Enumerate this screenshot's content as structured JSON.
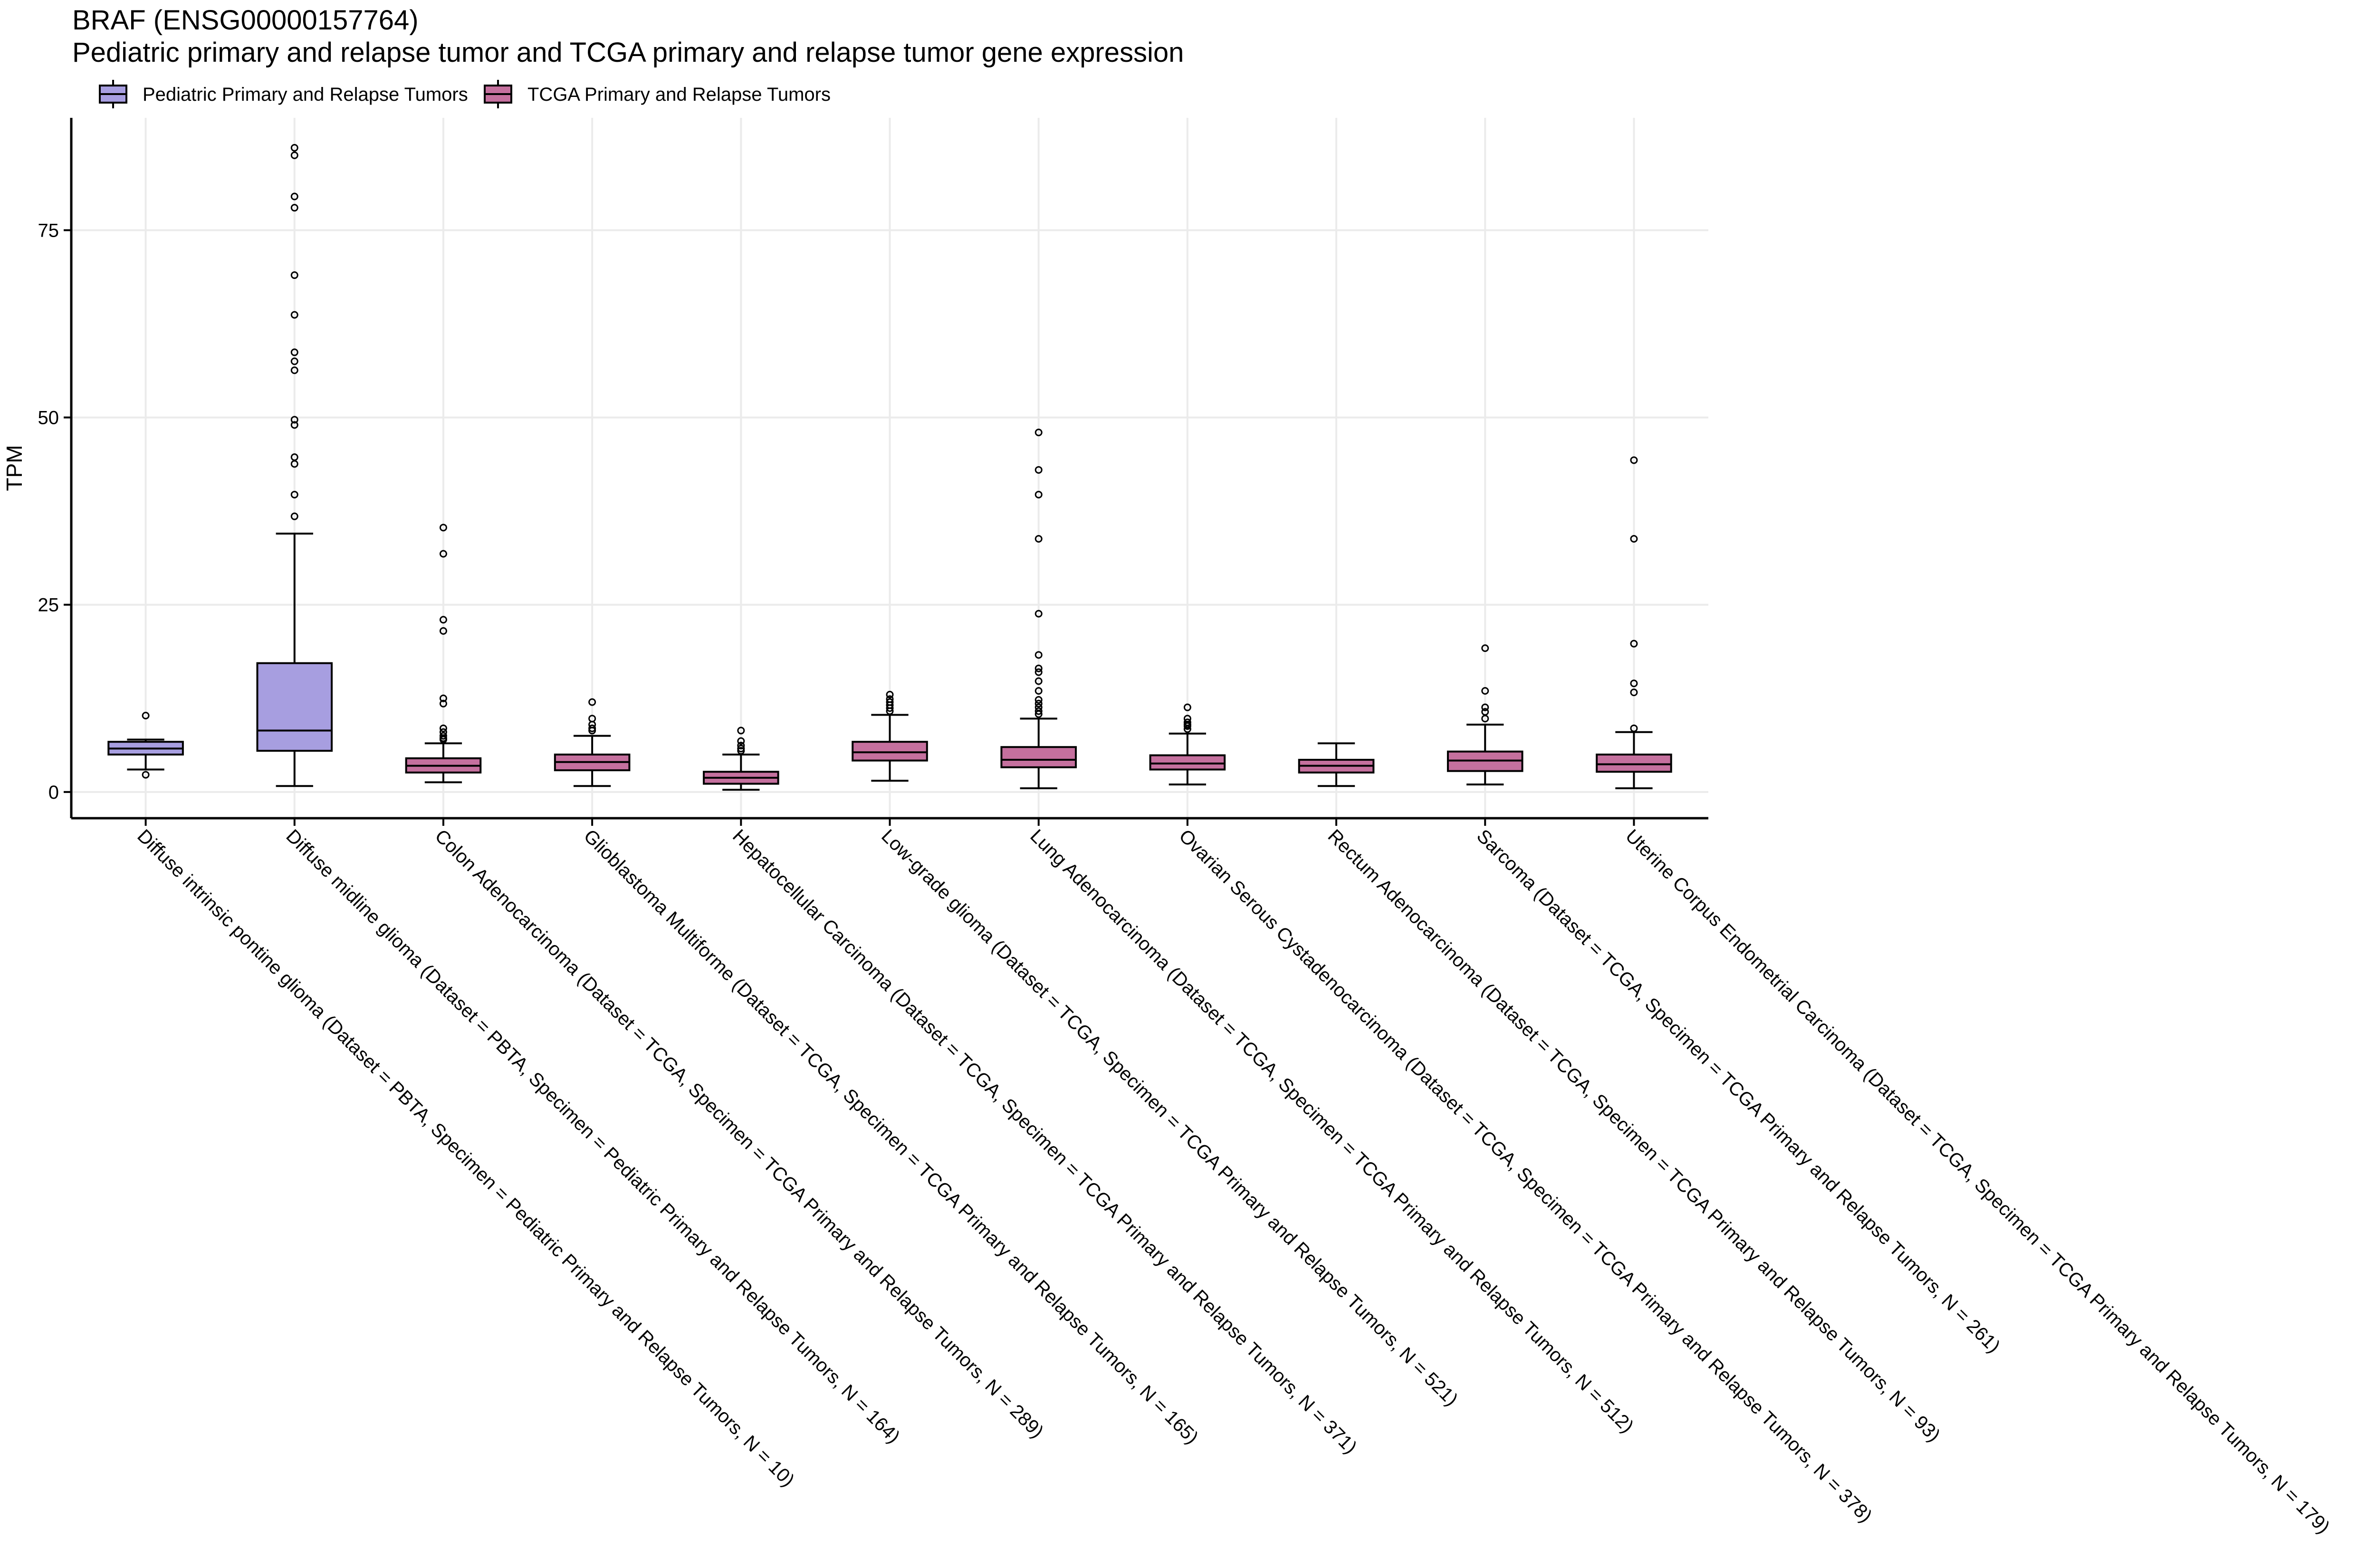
{
  "chart_data": {
    "type": "box",
    "title": "BRAF (ENSG00000157764)",
    "subtitle": "Pediatric primary and relapse tumor and TCGA primary and relapse tumor gene expression",
    "xlabel": "",
    "ylabel": "TPM",
    "ylim": [
      -3.5,
      90
    ],
    "yticks": [
      0,
      25,
      50,
      75
    ],
    "grid": true,
    "legend_position": "top-left",
    "legend": [
      {
        "name": "Pediatric Primary and Relapse Tumors",
        "color": "#a79ee0"
      },
      {
        "name": "TCGA Primary and Relapse Tumors",
        "color": "#c5709e"
      }
    ],
    "categories": [
      "Diffuse intrinsic pontine glioma  (Dataset = PBTA, Specimen = Pediatric Primary and Relapse Tumors, N = 10)",
      "Diffuse midline glioma  (Dataset = PBTA, Specimen = Pediatric Primary and Relapse Tumors, N = 164)",
      "Colon Adenocarcinoma  (Dataset = TCGA, Specimen = TCGA Primary and Relapse Tumors, N = 289)",
      "Glioblastoma Multiforme  (Dataset = TCGA, Specimen = TCGA Primary and Relapse Tumors, N = 165)",
      "Hepatocellular Carcinoma  (Dataset = TCGA, Specimen = TCGA Primary and Relapse Tumors, N = 371)",
      "Low-grade glioma  (Dataset = TCGA, Specimen = TCGA Primary and Relapse Tumors, N = 521)",
      "Lung Adenocarcinoma  (Dataset = TCGA, Specimen = TCGA Primary and Relapse Tumors, N = 512)",
      "Ovarian Serous Cystadenocarcinoma  (Dataset = TCGA, Specimen = TCGA Primary and Relapse Tumors, N = 378)",
      "Rectum Adenocarcinoma  (Dataset = TCGA, Specimen = TCGA Primary and Relapse Tumors, N = 93)",
      "Sarcoma  (Dataset = TCGA, Specimen = TCGA Primary and Relapse Tumors, N = 261)",
      "Uterine Corpus Endometrial Carcinoma  (Dataset = TCGA, Specimen = TCGA Primary and Relapse Tumors, N = 179)"
    ],
    "boxes": [
      {
        "group": "Pediatric Primary and Relapse Tumors",
        "whisker_low": 3.0,
        "q1": 5.0,
        "median": 5.8,
        "q3": 6.7,
        "whisker_high": 7.0,
        "outliers": [
          10.2,
          2.3
        ]
      },
      {
        "group": "Pediatric Primary and Relapse Tumors",
        "whisker_low": 0.8,
        "q1": 5.5,
        "median": 8.2,
        "q3": 17.2,
        "whisker_high": 34.5,
        "outliers": [
          86,
          85,
          79.5,
          78,
          69,
          63.7,
          58.7,
          57.5,
          56.3,
          49.7,
          49,
          44.7,
          43.8,
          39.7,
          36.8
        ]
      },
      {
        "group": "TCGA Primary and Relapse Tumors",
        "whisker_low": 1.3,
        "q1": 2.6,
        "median": 3.5,
        "q3": 4.5,
        "whisker_high": 6.5,
        "outliers": [
          35.3,
          31.8,
          23,
          21.5,
          12.5,
          11.8,
          8.5,
          8,
          7.5,
          7.2,
          7
        ]
      },
      {
        "group": "TCGA Primary and Relapse Tumors",
        "whisker_low": 0.8,
        "q1": 2.9,
        "median": 4.0,
        "q3": 5.0,
        "whisker_high": 7.5,
        "outliers": [
          12,
          9.8,
          9,
          8.5,
          8.2
        ]
      },
      {
        "group": "TCGA Primary and Relapse Tumors",
        "whisker_low": 0.3,
        "q1": 1.1,
        "median": 1.9,
        "q3": 2.7,
        "whisker_high": 5.0,
        "outliers": [
          8.2,
          6.8,
          6.2,
          5.8,
          5.5
        ]
      },
      {
        "group": "TCGA Primary and Relapse Tumors",
        "whisker_low": 1.5,
        "q1": 4.2,
        "median": 5.3,
        "q3": 6.7,
        "whisker_high": 10.3,
        "outliers": [
          13,
          12.4,
          12,
          11.6,
          11.2,
          10.8
        ]
      },
      {
        "group": "TCGA Primary and Relapse Tumors",
        "whisker_low": 0.5,
        "q1": 3.3,
        "median": 4.3,
        "q3": 6.0,
        "whisker_high": 9.8,
        "outliers": [
          48,
          43,
          39.7,
          33.8,
          23.8,
          18.3,
          16.5,
          16,
          14.8,
          13.5,
          12.3,
          11.8,
          11.3,
          10.8,
          10.4
        ]
      },
      {
        "group": "TCGA Primary and Relapse Tumors",
        "whisker_low": 1.0,
        "q1": 3.0,
        "median": 3.8,
        "q3": 4.9,
        "whisker_high": 7.8,
        "outliers": [
          11.3,
          9.8,
          9.3,
          9,
          8.8,
          8.4
        ]
      },
      {
        "group": "TCGA Primary and Relapse Tumors",
        "whisker_low": 0.8,
        "q1": 2.6,
        "median": 3.5,
        "q3": 4.3,
        "whisker_high": 6.5,
        "outliers": []
      },
      {
        "group": "TCGA Primary and Relapse Tumors",
        "whisker_low": 1.0,
        "q1": 2.8,
        "median": 4.2,
        "q3": 5.4,
        "whisker_high": 9.0,
        "outliers": [
          19.2,
          13.5,
          11.3,
          10.7,
          9.8
        ]
      },
      {
        "group": "TCGA Primary and Relapse Tumors",
        "whisker_low": 0.5,
        "q1": 2.7,
        "median": 3.7,
        "q3": 5.0,
        "whisker_high": 8.0,
        "outliers": [
          44.3,
          33.8,
          19.8,
          14.5,
          13.3,
          8.5
        ]
      }
    ]
  }
}
